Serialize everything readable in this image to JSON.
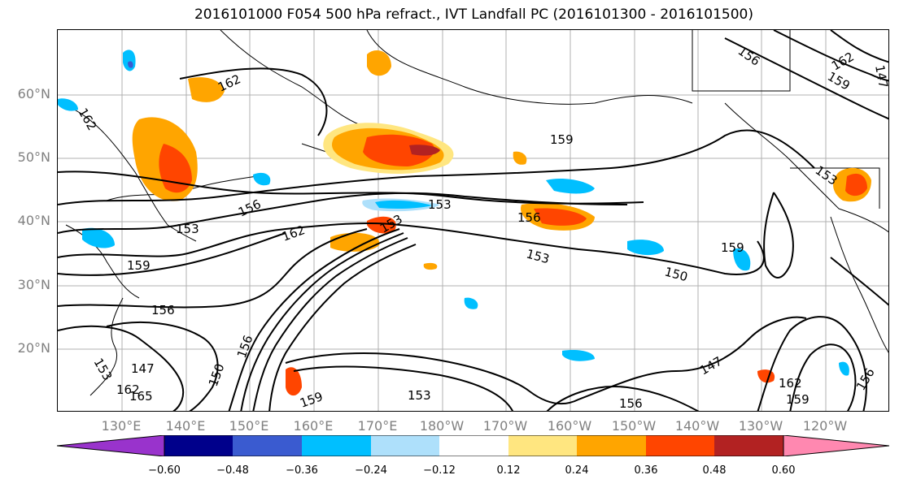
{
  "title": "2016101000 F054 500 hPa refract., IVT Landfall PC (2016101300 - 2016101500)",
  "lat_labels": [
    "60°N",
    "50°N",
    "40°N",
    "30°N",
    "20°N"
  ],
  "lon_labels": [
    "130°E",
    "140°E",
    "150°E",
    "160°E",
    "170°E",
    "180°W",
    "170°W",
    "160°W",
    "150°W",
    "140°W",
    "130°W",
    "120°W"
  ],
  "contour_labels": [
    "162",
    "162",
    "156",
    "153",
    "162",
    "159",
    "156",
    "153",
    "153",
    "156",
    "153",
    "150",
    "159",
    "147",
    "156",
    "147",
    "150",
    "159",
    "153",
    "159",
    "156",
    "147",
    "153",
    "162",
    "159",
    "156",
    "156",
    "162",
    "159",
    "153",
    "165",
    "162"
  ],
  "colorbar": {
    "ticks": [
      "−0.60",
      "−0.48",
      "−0.36",
      "−0.24",
      "−0.12",
      "0.12",
      "0.24",
      "0.36",
      "0.48",
      "0.60"
    ],
    "colors": {
      "lt_-0.60": "#9933cc",
      "-0.60_-0.48": "#00008b",
      "-0.48_-0.36": "#3a5bd0",
      "-0.36_-0.24": "#00bfff",
      "-0.24_-0.12": "#aee0fb",
      "-0.12_0.12": "#ffffff",
      "0.12_0.24": "#ffe680",
      "0.24_0.36": "#ffa500",
      "0.36_0.48": "#ff4500",
      "0.48_0.60": "#b22222",
      "gt_0.60": "#ff88b0"
    }
  }
}
